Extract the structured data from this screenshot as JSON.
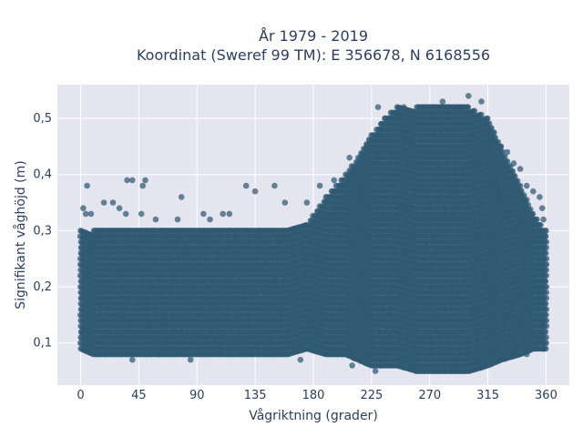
{
  "chart_data": {
    "type": "scatter",
    "title": "År 1979 - 2019",
    "subtitle": "Koordinat (Sweref 99 TM): E 356678, N 6168556",
    "xlabel": "Vågriktning (grader)",
    "ylabel": "Signifikant våghöjd (m)",
    "xlim": [
      -18,
      378
    ],
    "ylim": [
      0.025,
      0.56
    ],
    "x_ticks": [
      0,
      45,
      90,
      135,
      180,
      225,
      270,
      315,
      360
    ],
    "y_ticks": [
      0.1,
      0.2,
      0.3,
      0.4,
      0.5
    ],
    "y_tick_labels": [
      "0,1",
      "0,2",
      "0,3",
      "0,4",
      "0,5"
    ],
    "grid": true,
    "background_color": "#e5e5f0",
    "marker_color": "#2f5972",
    "envelope": {
      "x": [
        0,
        10,
        30,
        50,
        90,
        130,
        160,
        175,
        190,
        205,
        215,
        225,
        235,
        245,
        260,
        280,
        300,
        315,
        325,
        340,
        350,
        360
      ],
      "y_min": [
        0.09,
        0.08,
        0.08,
        0.08,
        0.08,
        0.08,
        0.08,
        0.09,
        0.08,
        0.08,
        0.07,
        0.06,
        0.06,
        0.06,
        0.05,
        0.05,
        0.05,
        0.06,
        0.07,
        0.08,
        0.09,
        0.09
      ],
      "y_max": [
        0.3,
        0.3,
        0.3,
        0.3,
        0.3,
        0.3,
        0.3,
        0.31,
        0.36,
        0.4,
        0.43,
        0.47,
        0.5,
        0.52,
        0.52,
        0.52,
        0.52,
        0.5,
        0.45,
        0.38,
        0.33,
        0.3
      ]
    },
    "outliers": [
      {
        "x": 2,
        "y": 0.34
      },
      {
        "x": 4,
        "y": 0.33
      },
      {
        "x": 5,
        "y": 0.38
      },
      {
        "x": 8,
        "y": 0.33
      },
      {
        "x": 18,
        "y": 0.35
      },
      {
        "x": 25,
        "y": 0.35
      },
      {
        "x": 30,
        "y": 0.34
      },
      {
        "x": 35,
        "y": 0.33
      },
      {
        "x": 36,
        "y": 0.39
      },
      {
        "x": 40,
        "y": 0.39
      },
      {
        "x": 47,
        "y": 0.33
      },
      {
        "x": 48,
        "y": 0.38
      },
      {
        "x": 50,
        "y": 0.39
      },
      {
        "x": 58,
        "y": 0.32
      },
      {
        "x": 75,
        "y": 0.32
      },
      {
        "x": 78,
        "y": 0.36
      },
      {
        "x": 95,
        "y": 0.33
      },
      {
        "x": 100,
        "y": 0.32
      },
      {
        "x": 110,
        "y": 0.33
      },
      {
        "x": 115,
        "y": 0.33
      },
      {
        "x": 128,
        "y": 0.38
      },
      {
        "x": 135,
        "y": 0.37
      },
      {
        "x": 150,
        "y": 0.38
      },
      {
        "x": 158,
        "y": 0.35
      },
      {
        "x": 175,
        "y": 0.35
      },
      {
        "x": 185,
        "y": 0.38
      },
      {
        "x": 196,
        "y": 0.39
      },
      {
        "x": 208,
        "y": 0.43
      },
      {
        "x": 230,
        "y": 0.52
      },
      {
        "x": 250,
        "y": 0.52
      },
      {
        "x": 280,
        "y": 0.53
      },
      {
        "x": 300,
        "y": 0.54
      },
      {
        "x": 310,
        "y": 0.53
      },
      {
        "x": 325,
        "y": 0.45
      },
      {
        "x": 330,
        "y": 0.44
      },
      {
        "x": 335,
        "y": 0.42
      },
      {
        "x": 340,
        "y": 0.41
      },
      {
        "x": 345,
        "y": 0.38
      },
      {
        "x": 350,
        "y": 0.37
      },
      {
        "x": 355,
        "y": 0.36
      },
      {
        "x": 357,
        "y": 0.34
      },
      {
        "x": 358,
        "y": 0.32
      },
      {
        "x": 5,
        "y": 0.09
      },
      {
        "x": 40,
        "y": 0.07
      },
      {
        "x": 60,
        "y": 0.08
      },
      {
        "x": 85,
        "y": 0.07
      },
      {
        "x": 150,
        "y": 0.08
      },
      {
        "x": 170,
        "y": 0.07
      },
      {
        "x": 188,
        "y": 0.09
      },
      {
        "x": 210,
        "y": 0.06
      },
      {
        "x": 228,
        "y": 0.05
      },
      {
        "x": 260,
        "y": 0.05
      },
      {
        "x": 275,
        "y": 0.05
      },
      {
        "x": 290,
        "y": 0.05
      },
      {
        "x": 310,
        "y": 0.06
      },
      {
        "x": 325,
        "y": 0.07
      },
      {
        "x": 345,
        "y": 0.08
      },
      {
        "x": 358,
        "y": 0.09
      }
    ]
  }
}
